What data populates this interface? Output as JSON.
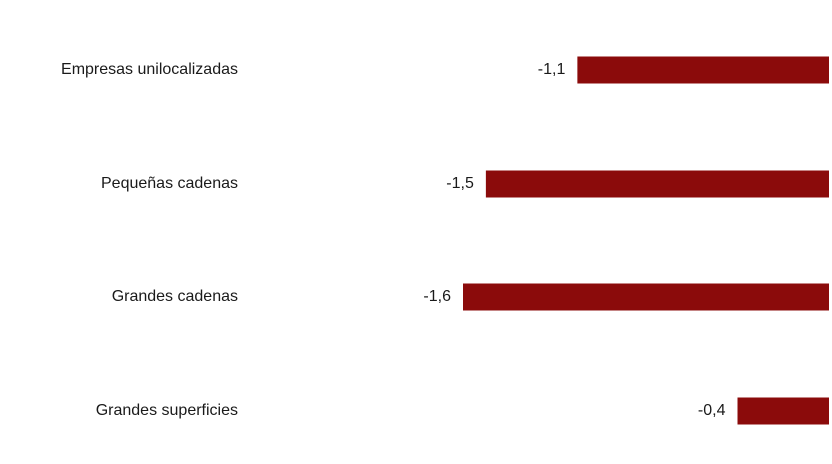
{
  "chart_data": {
    "type": "bar",
    "orientation": "horizontal",
    "categories": [
      "Empresas unilocalizadas",
      "Pequeñas cadenas",
      "Grandes cadenas",
      "Grandes superficies"
    ],
    "values": [
      -1.1,
      -1.5,
      -1.6,
      -0.4
    ],
    "value_labels": [
      "-1,1",
      "-1,5",
      "-1,6",
      "-0,4"
    ],
    "bar_color": "#8b0b0b",
    "grid": false,
    "legend": "none"
  }
}
